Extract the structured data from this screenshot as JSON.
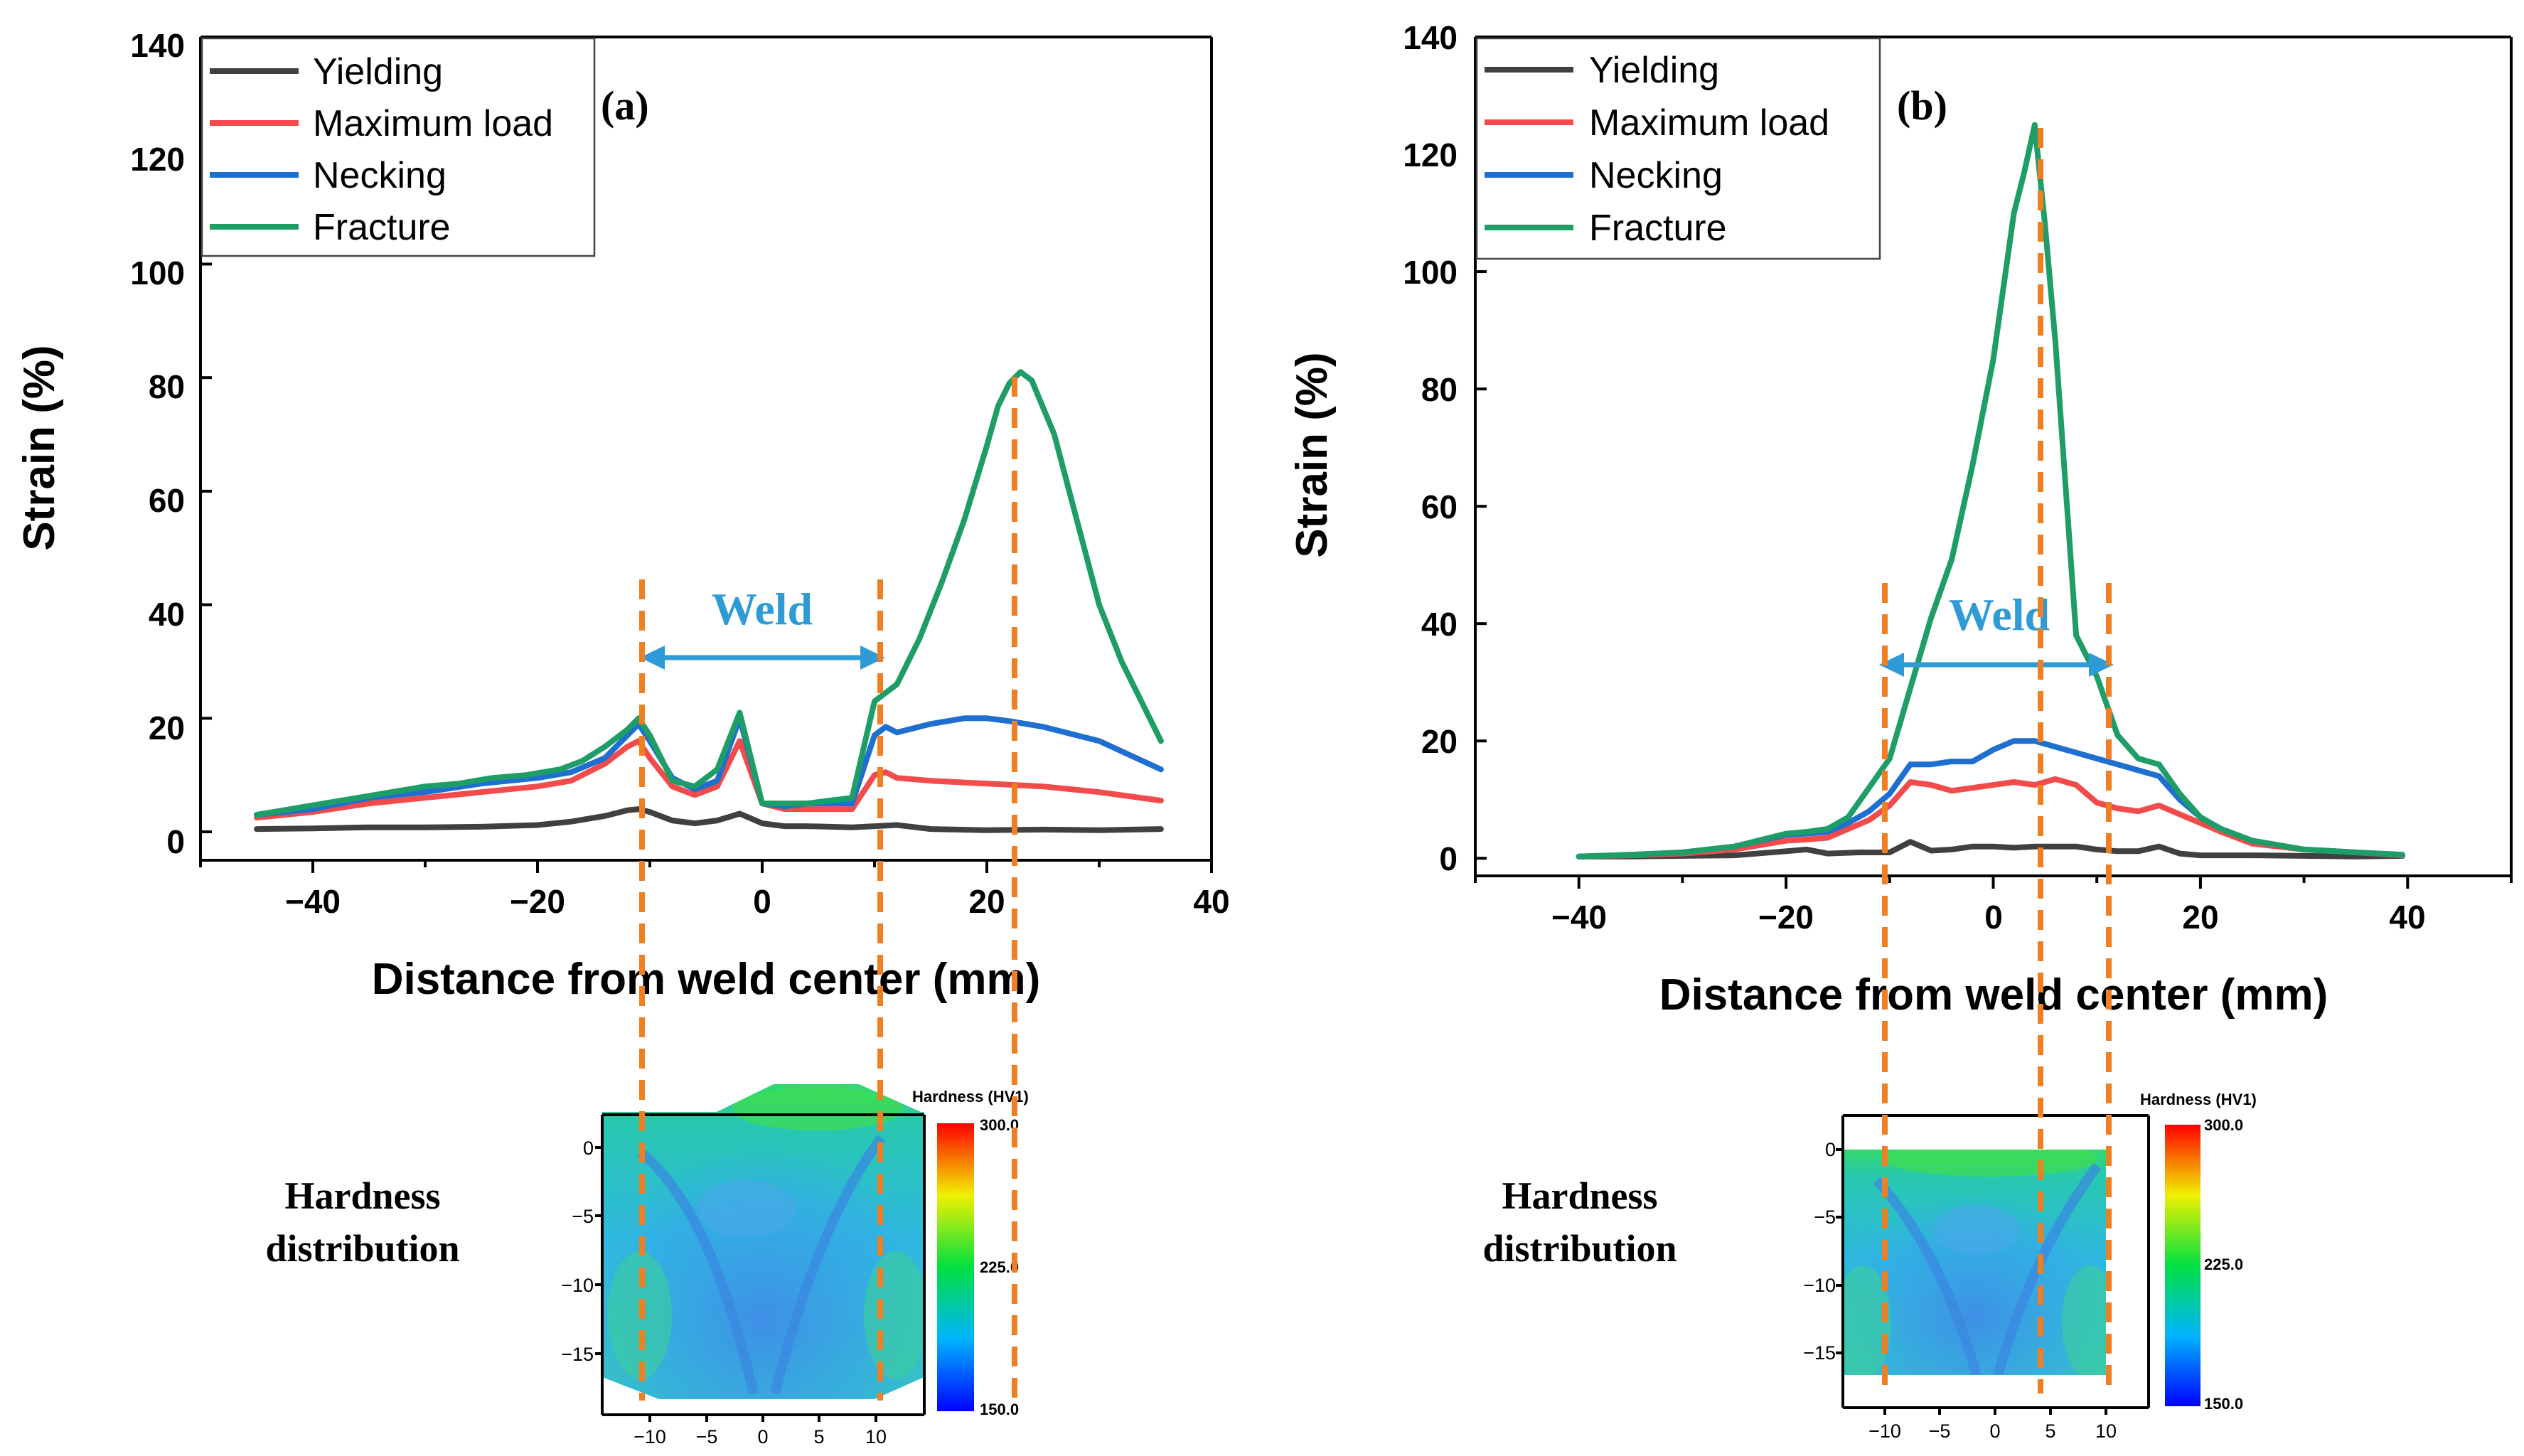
{
  "chart_data": [
    {
      "type": "line",
      "panel_label": "(a)",
      "xlabel": "Distance from weld center (mm)",
      "ylabel": "Strain (%)",
      "xlim": [
        -50,
        40
      ],
      "ylim": [
        -5,
        140
      ],
      "xticks": [
        -40,
        -20,
        0,
        20,
        40
      ],
      "yticks": [
        0,
        20,
        40,
        60,
        80,
        100,
        120,
        140
      ],
      "xtick_labels": [
        "−40",
        "−20",
        "0",
        "20",
        "40"
      ],
      "ytick_labels": [
        "0",
        "20",
        "40",
        "60",
        "80",
        "100",
        "120",
        "140"
      ],
      "legend": [
        "Yielding",
        "Maximum load",
        "Necking",
        "Fracture"
      ],
      "weld_label": "Weld",
      "weld_range": [
        -11,
        10.5
      ],
      "dashed_lines_x": [
        -11,
        10.5,
        22.5
      ],
      "series": [
        {
          "name": "Yielding",
          "color": "#404040",
          "x": [
            -45,
            -40,
            -35,
            -30,
            -25,
            -20,
            -17,
            -14,
            -12,
            -11,
            -10,
            -8,
            -6,
            -4,
            -2,
            0,
            2,
            4,
            6,
            8,
            10,
            12,
            15,
            20,
            25,
            30,
            35.5
          ],
          "y": [
            0.5,
            0.6,
            0.8,
            0.8,
            0.9,
            1.2,
            1.8,
            2.8,
            3.8,
            4,
            3.5,
            2,
            1.5,
            2,
            3.2,
            1.5,
            1,
            1,
            0.9,
            0.8,
            1,
            1.2,
            0.5,
            0.3,
            0.4,
            0.3,
            0.5
          ]
        },
        {
          "name": "Maximum load",
          "color": "#F24B4B",
          "x": [
            -45,
            -40,
            -35,
            -30,
            -25,
            -20,
            -17,
            -14,
            -12,
            -11,
            -10,
            -8,
            -6,
            -4,
            -2,
            0,
            2,
            4,
            6,
            8,
            10,
            11,
            12,
            15,
            20,
            25,
            30,
            35.5
          ],
          "y": [
            2.5,
            3.5,
            5,
            6,
            7,
            8,
            9,
            12,
            15,
            16,
            13,
            8,
            6.5,
            8,
            16,
            5,
            4,
            4,
            4,
            4,
            10,
            10.5,
            9.5,
            9,
            8.5,
            8,
            7,
            5.5
          ]
        },
        {
          "name": "Necking",
          "color": "#1F6FD1",
          "x": [
            -45,
            -40,
            -35,
            -30,
            -25,
            -20,
            -17,
            -14,
            -12,
            -11,
            -10,
            -8,
            -6,
            -4,
            -2,
            0,
            2,
            4,
            6,
            8,
            10,
            11,
            12,
            15,
            18,
            20,
            22,
            25,
            30,
            35.5
          ],
          "y": [
            3,
            4,
            6,
            7,
            8.5,
            9.5,
            10.5,
            13,
            17,
            19,
            16,
            9.5,
            7.5,
            9,
            20,
            5,
            4.5,
            5,
            5,
            5,
            17,
            18.5,
            17.5,
            19,
            20,
            20,
            19.5,
            18.5,
            16,
            11
          ]
        },
        {
          "name": "Fracture",
          "color": "#1E9E66",
          "x": [
            -45,
            -42,
            -39,
            -36,
            -33,
            -30,
            -27,
            -24,
            -21,
            -18,
            -16,
            -14,
            -12,
            -11,
            -10,
            -8,
            -6,
            -4,
            -2,
            0,
            2,
            4,
            6,
            8,
            10,
            12,
            14,
            16,
            18,
            20,
            21,
            22,
            22.5,
            23,
            24,
            26,
            28,
            30,
            32,
            35.5
          ],
          "y": [
            3,
            4,
            5,
            6,
            7,
            8,
            8.5,
            9.5,
            10,
            11,
            12.5,
            15,
            18,
            20,
            17,
            9,
            8,
            11,
            21,
            5,
            5,
            5,
            5.5,
            6,
            23,
            26,
            34,
            44,
            55,
            68,
            75,
            79,
            80,
            81,
            79.5,
            70,
            55,
            40,
            30,
            16
          ]
        }
      ],
      "inset": {
        "title": "Hardness (HV1)",
        "row_label": [
          "Hardness",
          "distribution"
        ],
        "xticks": [
          "−10",
          "−5",
          "0",
          "5",
          "10"
        ],
        "yticks": [
          "0",
          "−5",
          "−10",
          "−15"
        ],
        "colorbar_labels": [
          "300.0",
          "225.0",
          "150.0"
        ]
      }
    },
    {
      "type": "line",
      "panel_label": "(b)",
      "xlabel": "Distance from weld center (mm)",
      "ylabel": "Strain (%)",
      "xlim": [
        -50,
        50
      ],
      "ylim": [
        -3,
        140
      ],
      "xticks": [
        -40,
        -20,
        0,
        20,
        40
      ],
      "yticks": [
        0,
        20,
        40,
        60,
        80,
        100,
        120,
        140
      ],
      "xtick_labels": [
        "−40",
        "−20",
        "0",
        "20",
        "40"
      ],
      "ytick_labels": [
        "0",
        "20",
        "40",
        "60",
        "80",
        "100",
        "120",
        "140"
      ],
      "legend": [
        "Yielding",
        "Maximum load",
        "Necking",
        "Fracture"
      ],
      "weld_label": "Weld",
      "weld_range": [
        -11,
        11
      ],
      "dashed_lines_x": [
        -11,
        4,
        11
      ],
      "series": [
        {
          "name": "Yielding",
          "color": "#404040",
          "x": [
            -40,
            -35,
            -30,
            -25,
            -20,
            -18,
            -16,
            -13,
            -10,
            -8,
            -6,
            -4,
            -2,
            0,
            2,
            4,
            6,
            8,
            10,
            12,
            14,
            16,
            18,
            20,
            25,
            30,
            35,
            39.5
          ],
          "y": [
            0.3,
            0.3,
            0.4,
            0.5,
            1.2,
            1.5,
            0.8,
            1,
            1,
            2.8,
            1.3,
            1.5,
            2,
            2,
            1.8,
            2,
            2,
            2,
            1.5,
            1.2,
            1.2,
            2,
            0.8,
            0.5,
            0.5,
            0.4,
            0.3,
            0.4
          ]
        },
        {
          "name": "Maximum load",
          "color": "#F24B4B",
          "x": [
            -40,
            -35,
            -30,
            -25,
            -20,
            -18,
            -16,
            -14,
            -12,
            -10,
            -8,
            -6,
            -4,
            -2,
            0,
            2,
            4,
            6,
            8,
            10,
            12,
            14,
            16,
            18,
            20,
            22,
            25,
            30,
            35,
            39.5
          ],
          "y": [
            0.3,
            0.5,
            0.8,
            1.5,
            3,
            3.2,
            3.5,
            5,
            6.5,
            9,
            13,
            12.5,
            11.5,
            12,
            12.5,
            13,
            12.5,
            13.5,
            12.5,
            9.5,
            8.5,
            8,
            9,
            7.5,
            6,
            4.5,
            2.5,
            1.5,
            1,
            0.5
          ]
        },
        {
          "name": "Necking",
          "color": "#1F6FD1",
          "x": [
            -40,
            -35,
            -30,
            -25,
            -20,
            -18,
            -16,
            -14,
            -12,
            -10,
            -8,
            -6,
            -4,
            -2,
            0,
            2,
            4,
            6,
            8,
            10,
            12,
            14,
            16,
            18,
            20,
            22,
            25,
            30,
            35,
            39.5
          ],
          "y": [
            0.3,
            0.6,
            1,
            2,
            4,
            4.2,
            4.5,
            6,
            8,
            11,
            16,
            16,
            16.5,
            16.5,
            18.5,
            20,
            20,
            19,
            18,
            17,
            16,
            15,
            14,
            10,
            7,
            5,
            3,
            1.5,
            1,
            0.6
          ]
        },
        {
          "name": "Fracture",
          "color": "#1E9E66",
          "x": [
            -40,
            -35,
            -30,
            -25,
            -20,
            -18,
            -16,
            -14,
            -12,
            -10,
            -8,
            -6,
            -4,
            -2,
            0,
            2,
            3,
            4,
            5,
            6,
            8,
            10,
            12,
            14,
            16,
            18,
            20,
            22,
            25,
            30,
            35,
            39.5
          ],
          "y": [
            0.3,
            0.6,
            1,
            2,
            4.2,
            4.5,
            5,
            7,
            12,
            17,
            29,
            41,
            51,
            67,
            85,
            110,
            117,
            125,
            108,
            88,
            38,
            31,
            21,
            17,
            16,
            11,
            7,
            5,
            3,
            1.5,
            1,
            0.6
          ]
        }
      ],
      "inset": {
        "title": "Hardness (HV1)",
        "row_label": [
          "Hardness",
          "distribution"
        ],
        "xticks": [
          "−10",
          "−5",
          "0",
          "5",
          "10"
        ],
        "yticks": [
          "0",
          "−5",
          "−10",
          "−15"
        ],
        "colorbar_labels": [
          "300.0",
          "225.0",
          "150.0"
        ]
      }
    }
  ]
}
